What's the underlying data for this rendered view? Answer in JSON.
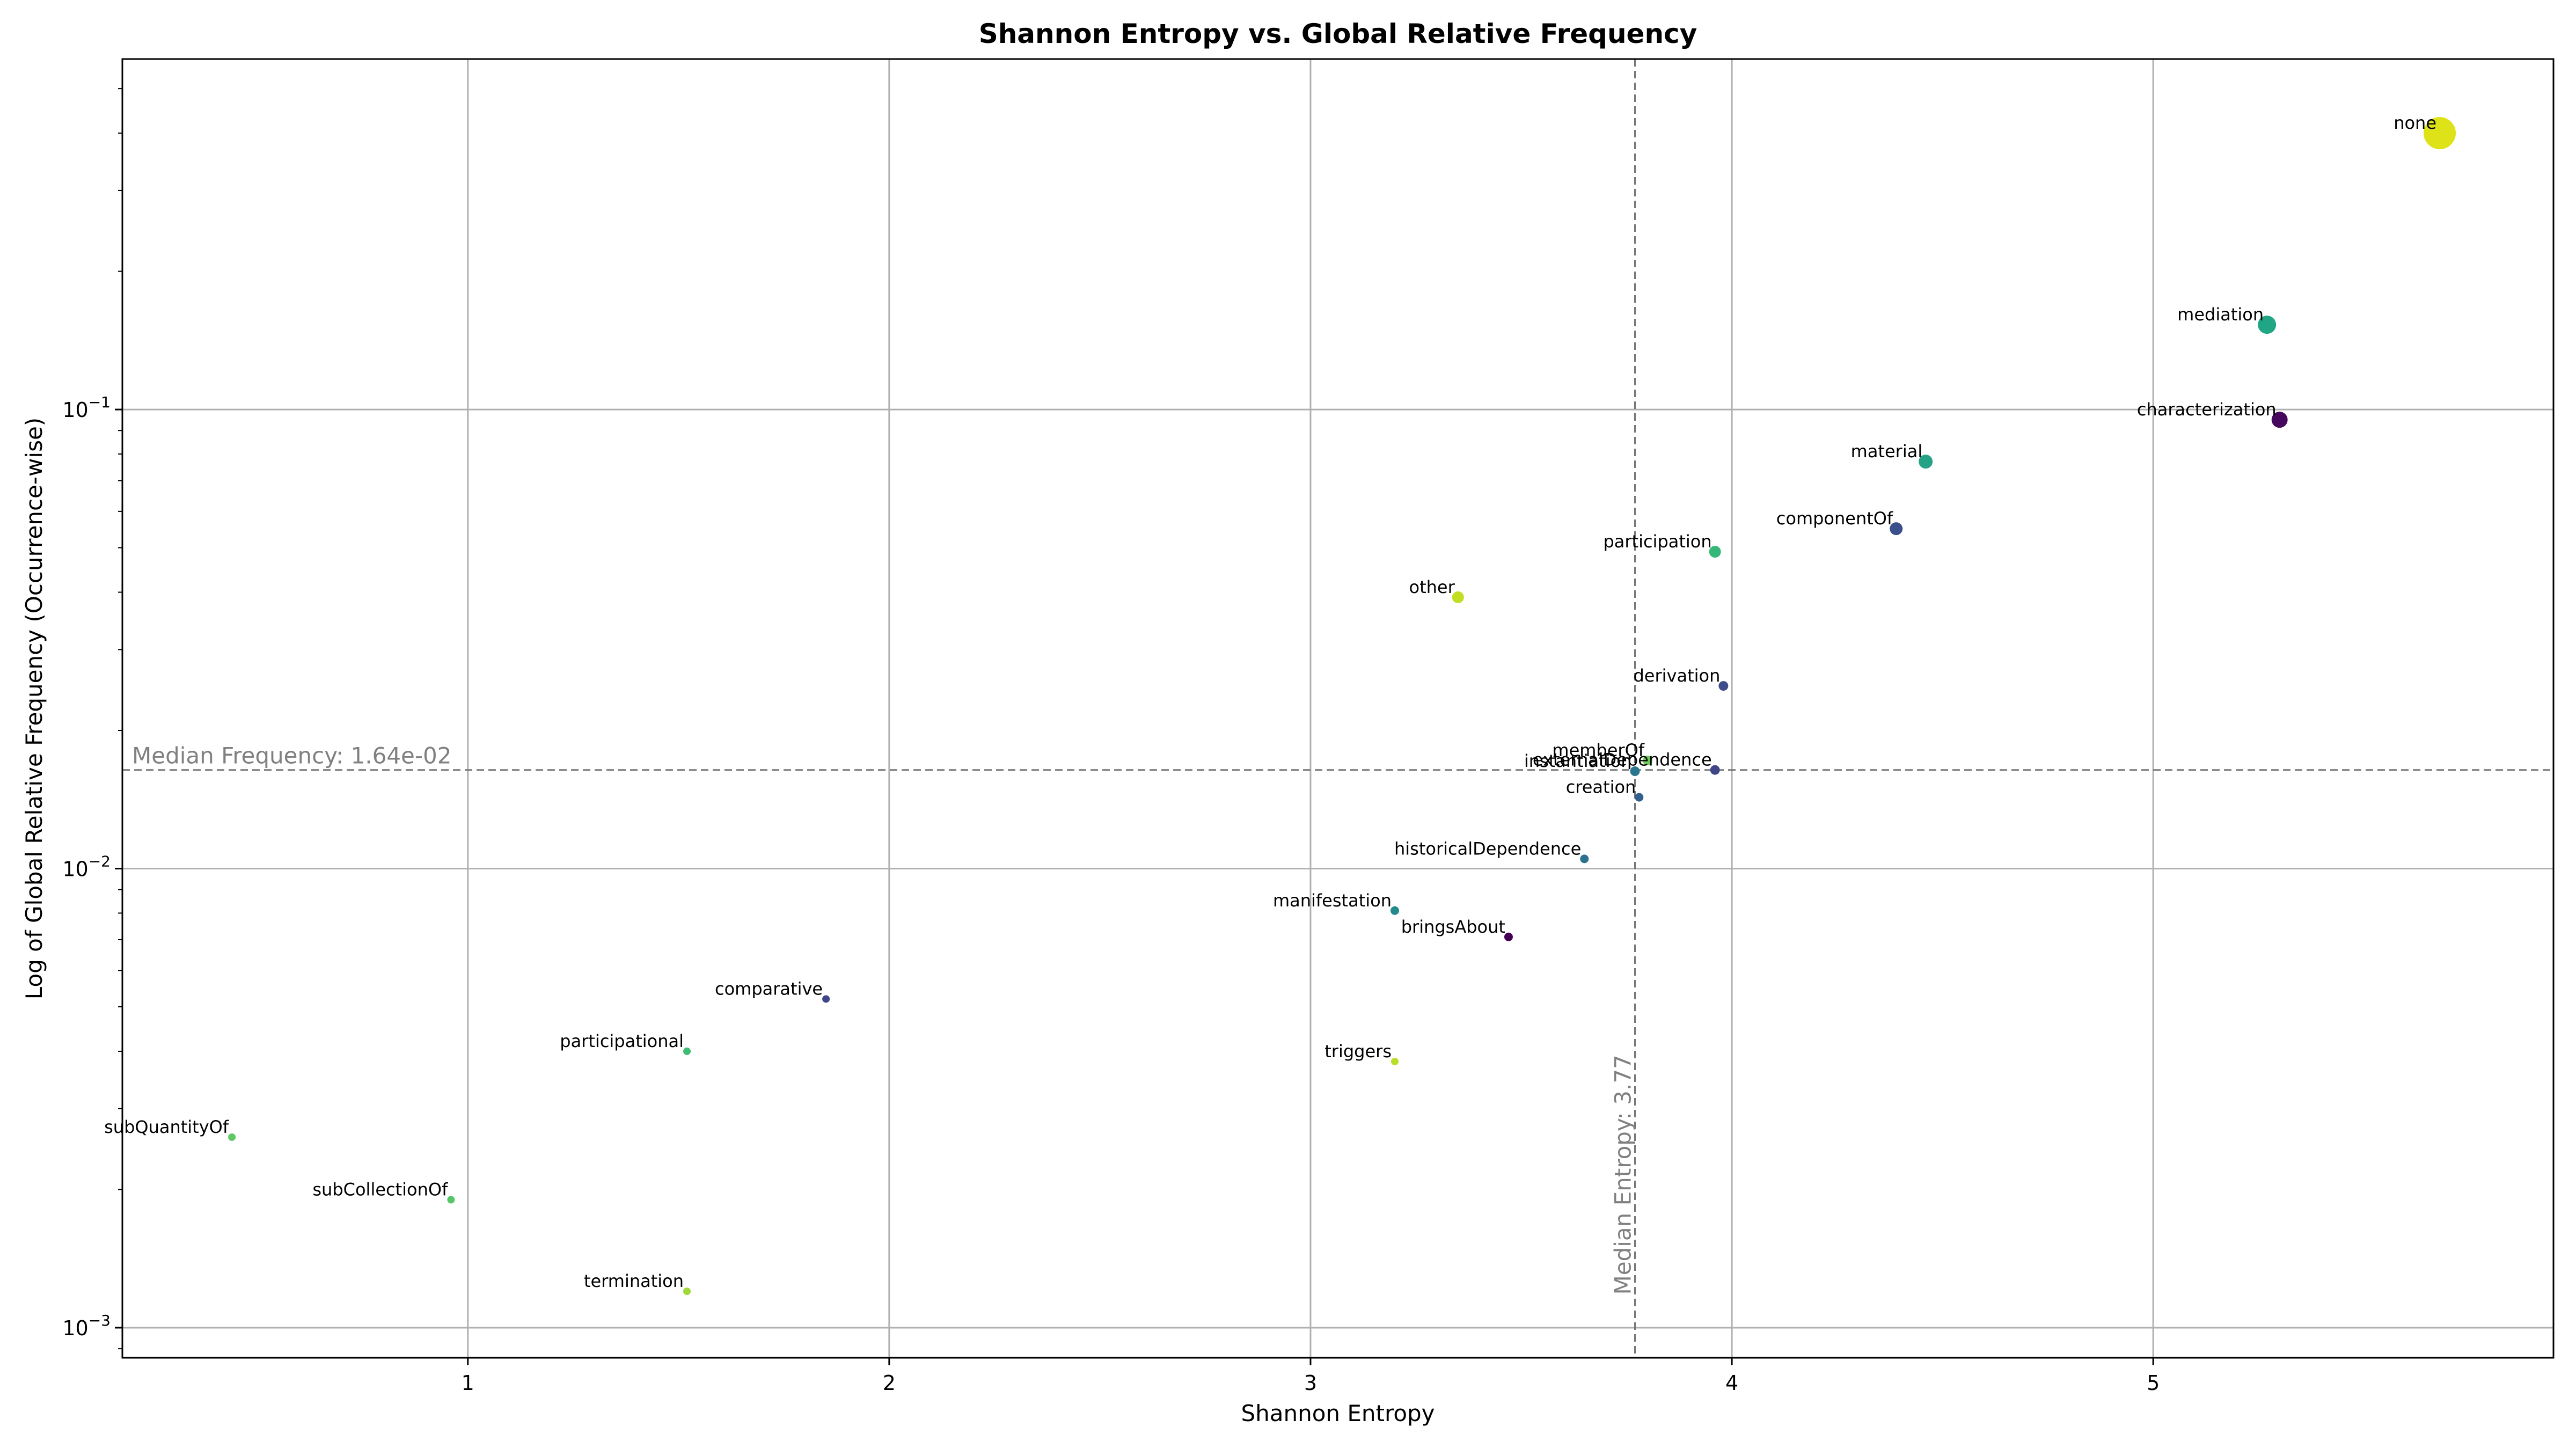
{
  "chart_data": {
    "type": "scatter",
    "title": "Shannon Entropy vs. Global Relative Frequency",
    "xlabel": "Shannon Entropy",
    "ylabel": "Log of Global Relative Frequency (Occurrence-wise)",
    "xlim": [
      0.18,
      5.95
    ],
    "ylim": [
      0.00086,
      0.58
    ],
    "yscale": "log",
    "grid": true,
    "x_ticks": [
      1,
      2,
      3,
      4,
      5
    ],
    "x_tick_labels": [
      "1",
      "2",
      "3",
      "4",
      "5"
    ],
    "y_ticks": [
      0.001,
      0.01,
      0.1
    ],
    "y_tick_labels": [
      {
        "base": "10",
        "exp": "−3"
      },
      {
        "base": "10",
        "exp": "−2"
      },
      {
        "base": "10",
        "exp": "−1"
      }
    ],
    "median_frequency": {
      "value": 0.0164,
      "label": "Median Frequency: 1.64e-02"
    },
    "median_entropy": {
      "value": 3.77,
      "label": "Median Entropy: 3.77"
    },
    "points": [
      {
        "label": "none",
        "x": 5.68,
        "y": 0.4,
        "color": "#dde318",
        "label_color": "#0000ff",
        "size": 30
      },
      {
        "label": "mediation",
        "x": 5.27,
        "y": 0.153,
        "color": "#21a685",
        "label_color": "#000000",
        "size": 17
      },
      {
        "label": "characterization",
        "x": 5.3,
        "y": 0.095,
        "color": "#46085c",
        "label_color": "#000000",
        "size": 15
      },
      {
        "label": "material",
        "x": 4.46,
        "y": 0.077,
        "color": "#26a386",
        "label_color": "#000000",
        "size": 13
      },
      {
        "label": "componentOf",
        "x": 4.39,
        "y": 0.055,
        "color": "#3b4f8a",
        "label_color": "#000000",
        "size": 12
      },
      {
        "label": "participation",
        "x": 3.96,
        "y": 0.049,
        "color": "#35b779",
        "label_color": "#000000",
        "size": 11
      },
      {
        "label": "other",
        "x": 3.35,
        "y": 0.039,
        "color": "#c3dd23",
        "label_color": "#ff0000",
        "size": 11
      },
      {
        "label": "derivation",
        "x": 3.98,
        "y": 0.025,
        "color": "#3e4c8a",
        "label_color": "#000000",
        "size": 9
      },
      {
        "label": "memberOf",
        "x": 3.8,
        "y": 0.0172,
        "color": "#6ece58",
        "label_color": "#000000",
        "size": 9
      },
      {
        "label": "instantiation",
        "x": 3.77,
        "y": 0.0163,
        "color": "#2a768e",
        "label_color": "#000000",
        "size": 9
      },
      {
        "label": "externalDependence",
        "x": 3.96,
        "y": 0.0164,
        "color": "#3f4788",
        "label_color": "#000000",
        "size": 9
      },
      {
        "label": "creation",
        "x": 3.78,
        "y": 0.0143,
        "color": "#34608d",
        "label_color": "#000000",
        "size": 8
      },
      {
        "label": "historicalDependence",
        "x": 3.65,
        "y": 0.0105,
        "color": "#2c728e",
        "label_color": "#000000",
        "size": 8
      },
      {
        "label": "manifestation",
        "x": 3.2,
        "y": 0.0081,
        "color": "#238a8d",
        "label_color": "#000000",
        "size": 8
      },
      {
        "label": "bringsAbout",
        "x": 3.47,
        "y": 0.0071,
        "color": "#440154",
        "label_color": "#000000",
        "size": 8
      },
      {
        "label": "comparative",
        "x": 1.85,
        "y": 0.0052,
        "color": "#3f4788",
        "label_color": "#000000",
        "size": 7
      },
      {
        "label": "participational",
        "x": 1.52,
        "y": 0.004,
        "color": "#3dbc74",
        "label_color": "#000000",
        "size": 7
      },
      {
        "label": "triggers",
        "x": 3.2,
        "y": 0.0038,
        "color": "#b8de29",
        "label_color": "#000000",
        "size": 7
      },
      {
        "label": "subQuantityOf",
        "x": 0.44,
        "y": 0.0026,
        "color": "#5ec962",
        "label_color": "#000000",
        "size": 7
      },
      {
        "label": "subCollectionOf",
        "x": 0.96,
        "y": 0.0019,
        "color": "#56c667",
        "label_color": "#000000",
        "size": 7
      },
      {
        "label": "termination",
        "x": 1.52,
        "y": 0.0012,
        "color": "#a0da39",
        "label_color": "#000000",
        "size": 7
      }
    ]
  }
}
